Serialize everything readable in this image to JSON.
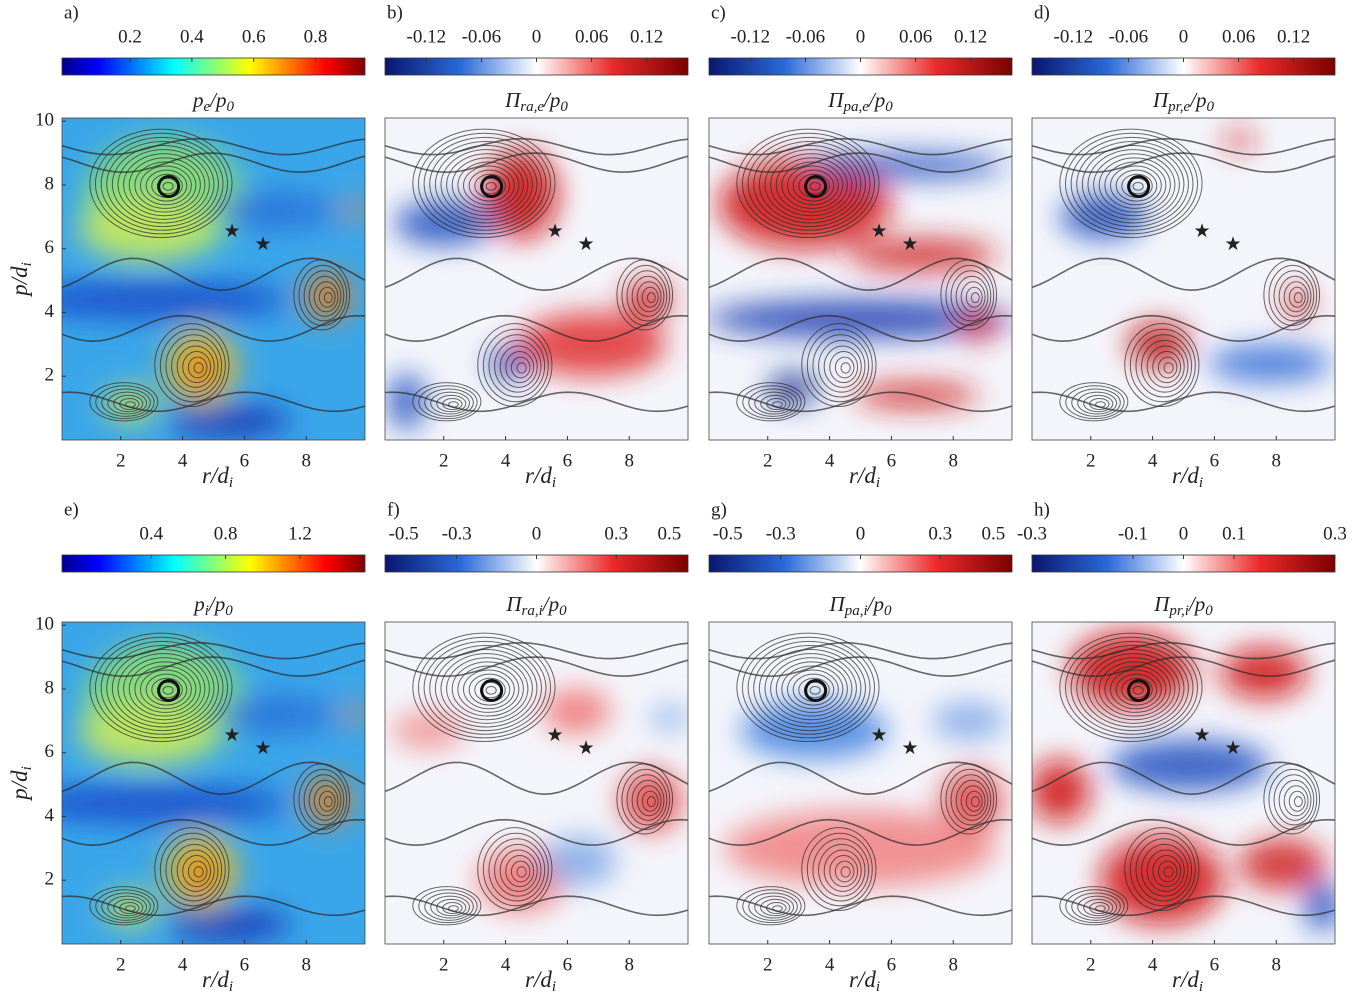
{
  "chart_data": [
    {
      "type": "heatmap",
      "panel": "a)",
      "colormap": "jet",
      "clim": [
        -0.02,
        0.96
      ],
      "cticks": [
        0.2,
        0.4,
        0.6,
        0.8
      ],
      "title": [
        "p",
        "e",
        "/p",
        "0"
      ],
      "xlim": [
        0.1,
        9.9
      ],
      "ylim": [
        0,
        10.1
      ],
      "xticks": [
        2,
        4,
        6,
        8
      ],
      "yticks": [
        2,
        4,
        6,
        8,
        10
      ],
      "xlabel": [
        "r/d",
        "i"
      ],
      "ylabel": [
        "p/d",
        "i"
      ]
    },
    {
      "type": "heatmap",
      "panel": "b)",
      "colormap": "bwr",
      "clim": [
        -0.165,
        0.165
      ],
      "cticks": [
        -0.12,
        -0.06,
        0,
        0.06,
        0.12
      ],
      "title": [
        "Π",
        "ra,e",
        "/p",
        "0"
      ],
      "xlim": [
        0.1,
        9.9
      ],
      "ylim": [
        0,
        10.1
      ],
      "xticks": [
        2,
        4,
        6,
        8
      ],
      "xlabel": [
        "r/d",
        "i"
      ]
    },
    {
      "type": "heatmap",
      "panel": "c)",
      "colormap": "bwr",
      "clim": [
        -0.165,
        0.165
      ],
      "cticks": [
        -0.12,
        -0.06,
        0,
        0.06,
        0.12
      ],
      "title": [
        "Π",
        "pa,e",
        "/p",
        "0"
      ],
      "xlim": [
        0.1,
        9.9
      ],
      "ylim": [
        0,
        10.1
      ],
      "xticks": [
        2,
        4,
        6,
        8
      ],
      "xlabel": [
        "r/d",
        "i"
      ]
    },
    {
      "type": "heatmap",
      "panel": "d)",
      "colormap": "bwr",
      "clim": [
        -0.165,
        0.165
      ],
      "cticks": [
        -0.12,
        -0.06,
        0,
        0.06,
        0.12
      ],
      "title": [
        "Π",
        "pr,e",
        "/p",
        "0"
      ],
      "xlim": [
        0.1,
        9.9
      ],
      "ylim": [
        0,
        10.1
      ],
      "xticks": [
        2,
        4,
        6,
        8
      ],
      "xlabel": [
        "r/d",
        "i"
      ]
    },
    {
      "type": "heatmap",
      "panel": "e)",
      "colormap": "jet",
      "clim": [
        -0.08,
        1.55
      ],
      "cticks": [
        0.4,
        0.8,
        1.2
      ],
      "title": [
        "p",
        "i",
        "/p",
        "0"
      ],
      "xlim": [
        0.1,
        9.9
      ],
      "ylim": [
        0,
        10.1
      ],
      "xticks": [
        2,
        4,
        6,
        8
      ],
      "yticks": [
        2,
        4,
        6,
        8,
        10
      ],
      "xlabel": [
        "r/d",
        "i"
      ],
      "ylabel": [
        "p/d",
        "i"
      ]
    },
    {
      "type": "heatmap",
      "panel": "f)",
      "colormap": "bwr",
      "clim": [
        -0.57,
        0.57
      ],
      "cticks": [
        -0.5,
        -0.3,
        0,
        0.3,
        0.5
      ],
      "title": [
        "Π",
        "ra,i",
        "/p",
        "0"
      ],
      "xlim": [
        0.1,
        9.9
      ],
      "ylim": [
        0,
        10.1
      ],
      "xticks": [
        2,
        4,
        6,
        8
      ],
      "xlabel": [
        "r/d",
        "i"
      ]
    },
    {
      "type": "heatmap",
      "panel": "g)",
      "colormap": "bwr",
      "clim": [
        -0.57,
        0.57
      ],
      "cticks": [
        -0.5,
        -0.3,
        0,
        0.3,
        0.5
      ],
      "title": [
        "Π",
        "pa,i",
        "/p",
        "0"
      ],
      "xlim": [
        0.1,
        9.9
      ],
      "ylim": [
        0,
        10.1
      ],
      "xticks": [
        2,
        4,
        6,
        8
      ],
      "xlabel": [
        "r/d",
        "i"
      ]
    },
    {
      "type": "heatmap",
      "panel": "h)",
      "colormap": "bwr",
      "clim": [
        -0.3,
        0.3
      ],
      "cticks": [
        -0.3,
        -0.1,
        0,
        0.1,
        0.3
      ],
      "title": [
        "Π",
        "pr,i",
        "/p",
        "0"
      ],
      "xlim": [
        0.1,
        9.9
      ],
      "ylim": [
        0,
        10.1
      ],
      "xticks": [
        2,
        4,
        6,
        8
      ],
      "xlabel": [
        "r/d",
        "i"
      ]
    }
  ]
}
